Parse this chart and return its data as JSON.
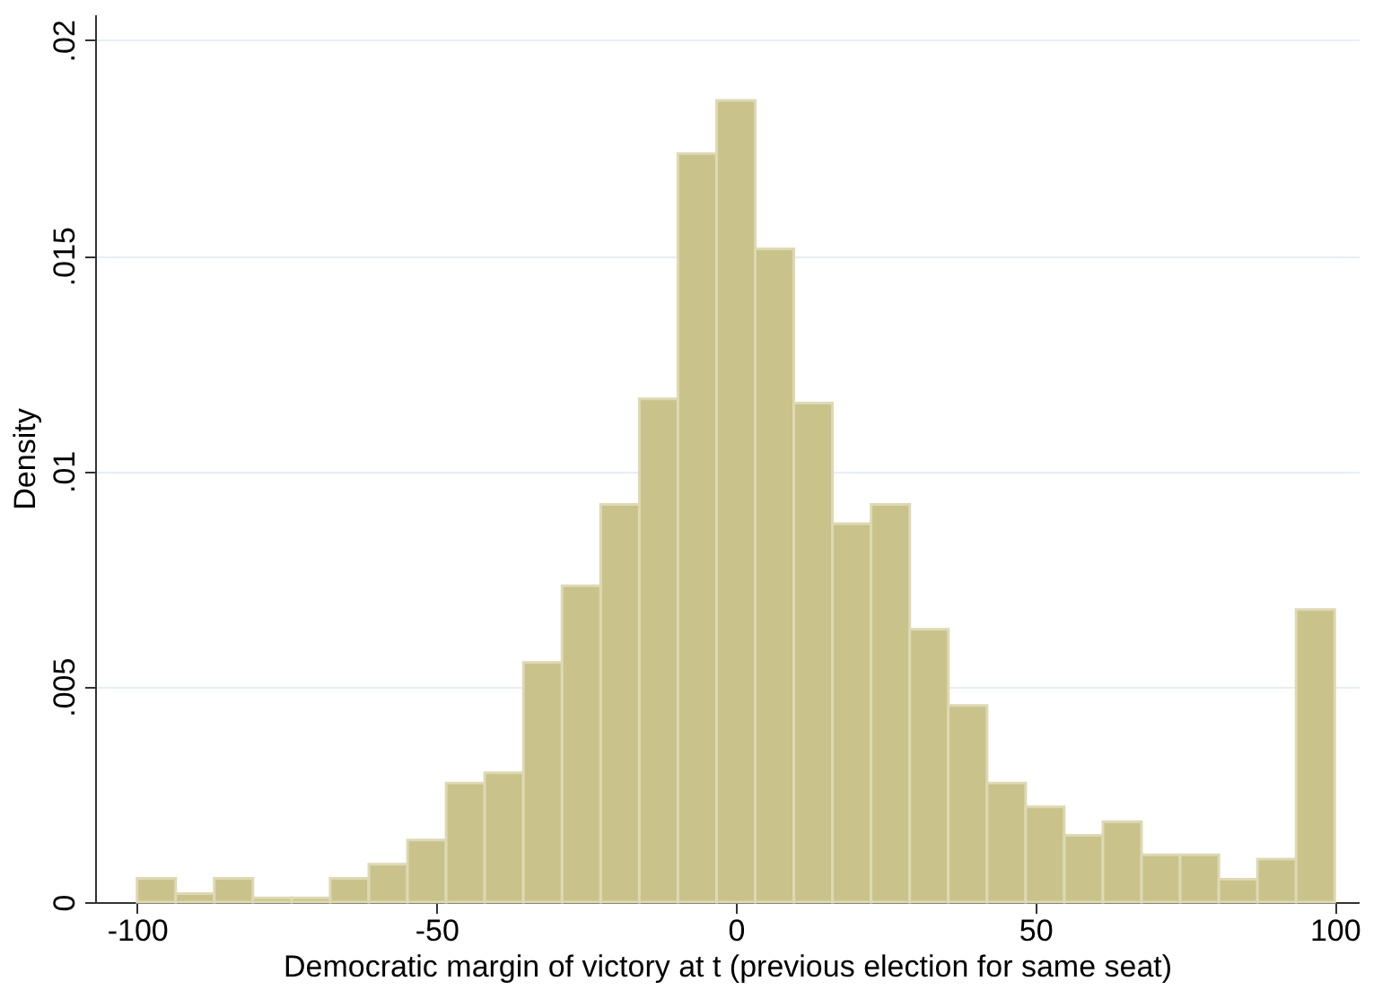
{
  "chart_data": {
    "type": "histogram",
    "xlabel": "Democratic margin of victory at t (previous election for same seat)",
    "ylabel": "Density",
    "bins": [
      -100,
      -93.55,
      -87.1,
      -80.65,
      -74.19,
      -67.74,
      -61.29,
      -54.84,
      -48.39,
      -41.94,
      -35.48,
      -29.03,
      -22.58,
      -16.13,
      -9.68,
      -3.23,
      3.23,
      9.68,
      16.13,
      22.58,
      29.03,
      35.48,
      41.94,
      48.39,
      54.84,
      61.29,
      67.74,
      74.19,
      80.65,
      87.1,
      93.55,
      100
    ],
    "values": [
      0.00055,
      0.0002,
      0.00055,
      0.0001,
      0.0001,
      0.00055,
      0.00088,
      0.00144,
      0.00276,
      0.003,
      0.00556,
      0.00734,
      0.00923,
      0.01168,
      0.01737,
      0.0186,
      0.01516,
      0.01158,
      0.00878,
      0.00923,
      0.00633,
      0.00456,
      0.00276,
      0.00221,
      0.00155,
      0.00187,
      0.0011,
      0.0011,
      0.00053,
      0.001,
      0.00679
    ],
    "color": "#c9c28a",
    "xlim": [
      -107,
      104
    ],
    "xticks": [
      -100,
      -50,
      0,
      50,
      100
    ],
    "ylim": [
      0,
      0.0206
    ],
    "yticks": [
      0,
      {
        "value": 0.005,
        "label": ".005"
      },
      {
        "value": 0.01,
        "label": ".01"
      },
      {
        "value": 0.015,
        "label": ".015"
      },
      {
        "value": 0.02,
        "label": ".02"
      }
    ],
    "grid": "y"
  }
}
